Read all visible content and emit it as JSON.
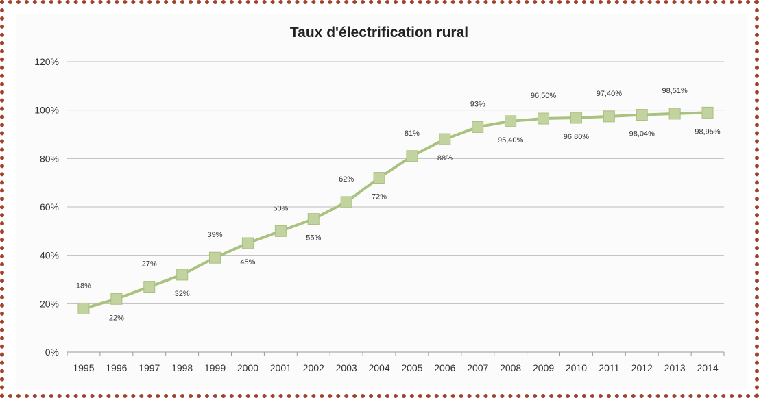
{
  "chart_data": {
    "type": "line",
    "title": "Taux d'électrification rural",
    "xlabel": "",
    "ylabel": "",
    "ylim": [
      0,
      120
    ],
    "y_ticks": [
      "0%",
      "20%",
      "40%",
      "60%",
      "80%",
      "100%",
      "120%"
    ],
    "y_tick_values": [
      0,
      20,
      40,
      60,
      80,
      100,
      120
    ],
    "grid": true,
    "legend": "none",
    "series_color": "#a9c27e",
    "marker_color": "#c3d39f",
    "marker_edge_color": "#aabf80",
    "grid_color": "#bdbdbd",
    "x": [
      "1995",
      "1996",
      "1997",
      "1998",
      "1999",
      "2000",
      "2001",
      "2002",
      "2003",
      "2004",
      "2005",
      "2006",
      "2007",
      "2008",
      "2009",
      "2010",
      "2011",
      "2012",
      "2013",
      "2014"
    ],
    "values": [
      18,
      22,
      27,
      32,
      39,
      45,
      50,
      55,
      62,
      72,
      81,
      88,
      93,
      95.4,
      96.5,
      96.8,
      97.4,
      98.04,
      98.51,
      98.95
    ],
    "data_labels": [
      "18%",
      "22%",
      "27%",
      "32%",
      "39%",
      "45%",
      "50%",
      "55%",
      "62%",
      "72%",
      "81%",
      "88%",
      "93%",
      "95,40%",
      "96,50%",
      "96,80%",
      "97,40%",
      "98,04%",
      "98,51%",
      "98,95%"
    ],
    "label_position": [
      "above",
      "below",
      "above",
      "below",
      "above",
      "below",
      "above",
      "below",
      "above",
      "below",
      "above",
      "below",
      "above",
      "below",
      "above",
      "below",
      "above",
      "below",
      "above",
      "below"
    ]
  }
}
